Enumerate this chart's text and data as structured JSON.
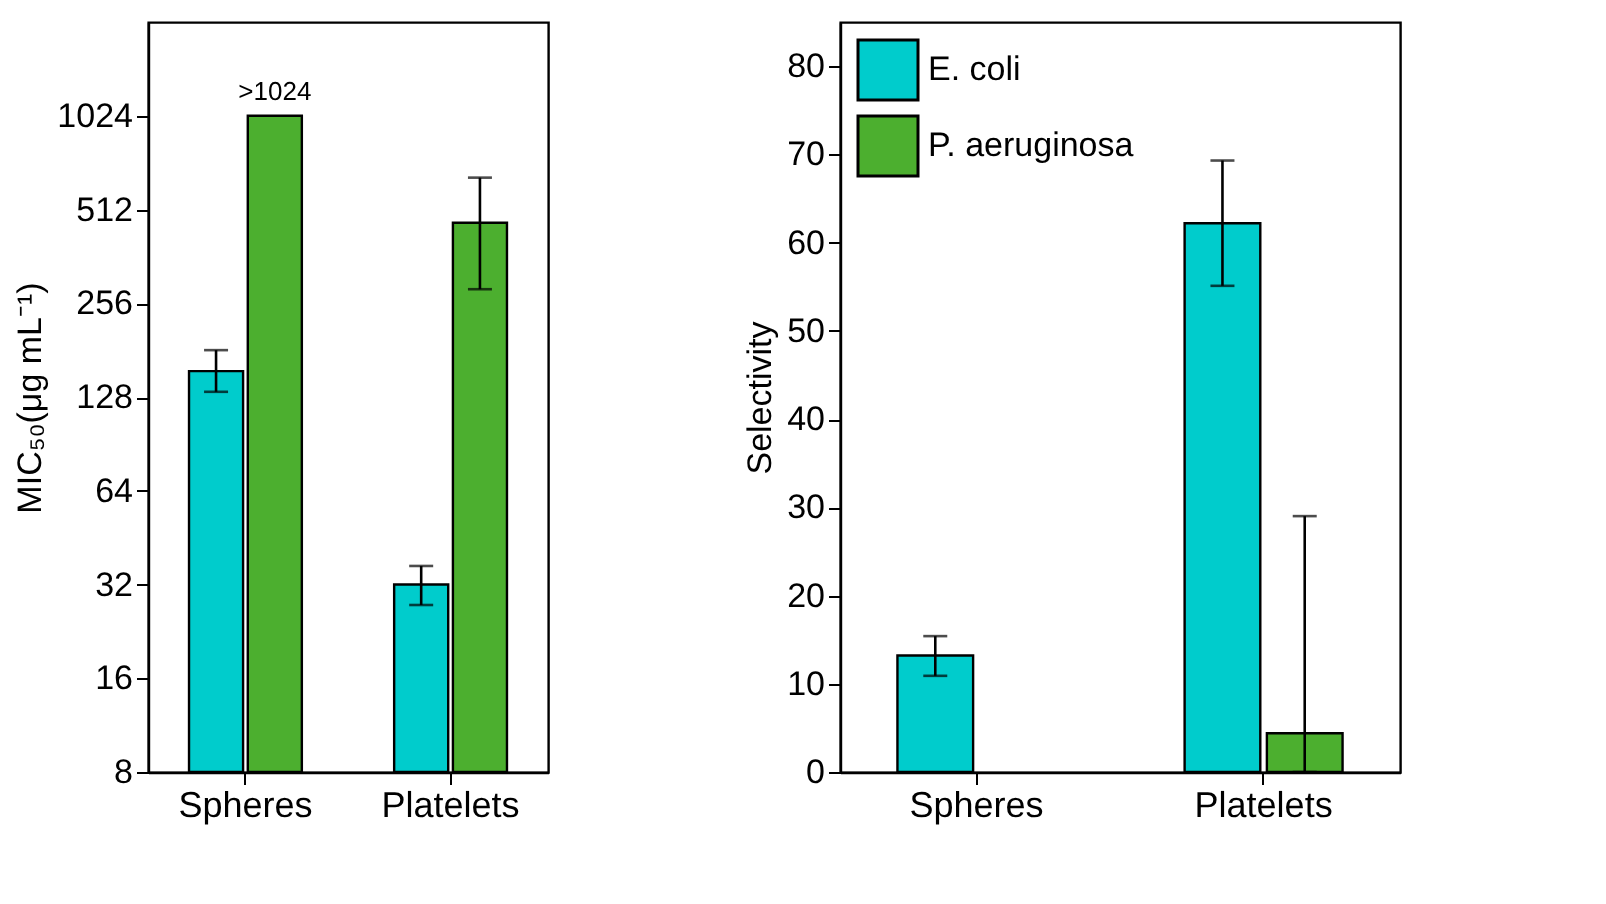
{
  "chart_data": [
    {
      "type": "bar",
      "categories": [
        "Spheres",
        "Platelets"
      ],
      "ylabel": "MIC₅₀(μg mL⁻¹)",
      "log": true,
      "ylim": [
        8,
        2048
      ],
      "yticks": [
        8,
        16,
        32,
        64,
        128,
        256,
        512,
        1024
      ],
      "grid": false,
      "legend": false,
      "series": [
        {
          "color": "#00cccc",
          "values": [
            155,
            32
          ],
          "errors": [
            [
              133,
              181
            ],
            [
              27.5,
              36.7
            ]
          ]
        },
        {
          "color": "#4caf2f",
          "values": [
            1024,
            464
          ],
          "errors": [
            null,
            [
              284,
              648
            ]
          ]
        }
      ],
      "annotations": [
        {
          "text": ">1024",
          "x": "Spheres",
          "y": 1024
        }
      ]
    },
    {
      "type": "bar",
      "categories": [
        "Spheres",
        "Platelets"
      ],
      "ylabel": "Selectivity",
      "ylim": [
        0,
        85
      ],
      "yticks": [
        0,
        10,
        20,
        30,
        40,
        50,
        60,
        70,
        80
      ],
      "grid": false,
      "legend": "top left",
      "series": [
        {
          "name": "E. coli",
          "color": "#00cccc",
          "values": [
            13.2,
            62.2
          ],
          "errors": [
            [
              10.9,
              15.4
            ],
            [
              55.1,
              69.3
            ]
          ]
        },
        {
          "name": "P. aeruginosa",
          "color": "#4caf2f",
          "values": [
            null,
            4.4
          ],
          "errors": [
            null,
            [
              0,
              29.0
            ]
          ]
        }
      ]
    }
  ]
}
